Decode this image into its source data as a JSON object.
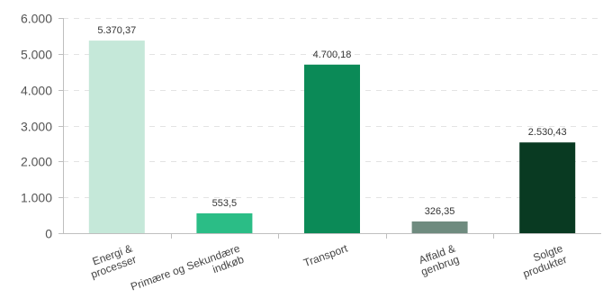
{
  "chart_data": {
    "type": "bar",
    "title": "",
    "xlabel": "",
    "ylabel": "",
    "ylim": [
      0,
      6000
    ],
    "yticks": [
      0,
      1000,
      2000,
      3000,
      4000,
      5000,
      6000
    ],
    "ytick_labels": [
      "0",
      "1.000",
      "2.000",
      "3.000",
      "4.000",
      "5.000",
      "6.000"
    ],
    "grid": true,
    "categories": [
      [
        "Energi &",
        "processer"
      ],
      [
        "Primære og Sekundære",
        "indkøb"
      ],
      [
        "Transport"
      ],
      [
        "Affald &",
        "genbrug"
      ],
      [
        "Solgte",
        "produkter"
      ]
    ],
    "values": [
      5370.37,
      553.5,
      4700.18,
      326.35,
      2530.43
    ],
    "value_labels": [
      "5.370,37",
      "553,5",
      "4.700,18",
      "326,35",
      "2.530,43"
    ],
    "colors": [
      "#c5e8d9",
      "#2bbd86",
      "#0b8a57",
      "#6f8b7f",
      "#093a22"
    ]
  }
}
